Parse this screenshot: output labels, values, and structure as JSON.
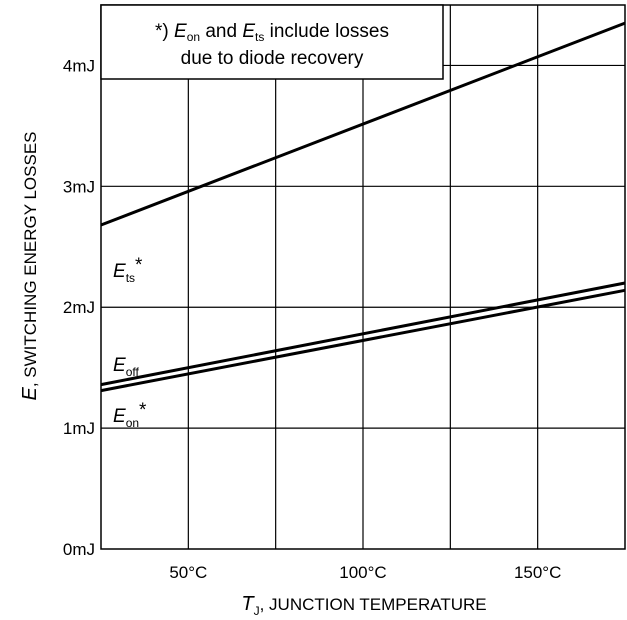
{
  "chart_data": {
    "type": "line",
    "xlabel": {
      "symbol": "T",
      "sub": "J",
      "text": ", JUNCTION TEMPERATURE"
    },
    "ylabel": {
      "symbol": "E",
      "text": ", SWITCHING ENERGY LOSSES"
    },
    "xlim": [
      25,
      175
    ],
    "ylim": [
      0,
      4.5
    ],
    "x_ticks": [
      {
        "value": 50,
        "label": "50°C"
      },
      {
        "value": 100,
        "label": "100°C"
      },
      {
        "value": 150,
        "label": "150°C"
      }
    ],
    "y_ticks": [
      {
        "value": 0,
        "label": "0mJ"
      },
      {
        "value": 1,
        "label": "1mJ"
      },
      {
        "value": 2,
        "label": "2mJ"
      },
      {
        "value": 3,
        "label": "3mJ"
      },
      {
        "value": 4,
        "label": "4mJ"
      }
    ],
    "grid": true,
    "series": [
      {
        "name": "Ets*",
        "label": {
          "symbol": "E",
          "sub": "ts",
          "suffix": "*"
        },
        "x": [
          25,
          175
        ],
        "y": [
          2.68,
          4.35
        ]
      },
      {
        "name": "Eoff",
        "label": {
          "symbol": "E",
          "sub": "off",
          "suffix": ""
        },
        "x": [
          25,
          175
        ],
        "y": [
          1.36,
          2.2
        ]
      },
      {
        "name": "Eon*",
        "label": {
          "symbol": "E",
          "sub": "on",
          "suffix": "*"
        },
        "x": [
          25,
          175
        ],
        "y": [
          1.31,
          2.14
        ]
      }
    ],
    "annotation": {
      "line1": {
        "prefix": "*) ",
        "sym1": "E",
        "sub1": "on",
        "mid": " and ",
        "sym2": "E",
        "sub2": "ts",
        "suffix": " include losses"
      },
      "line2": "due to diode recovery"
    }
  }
}
